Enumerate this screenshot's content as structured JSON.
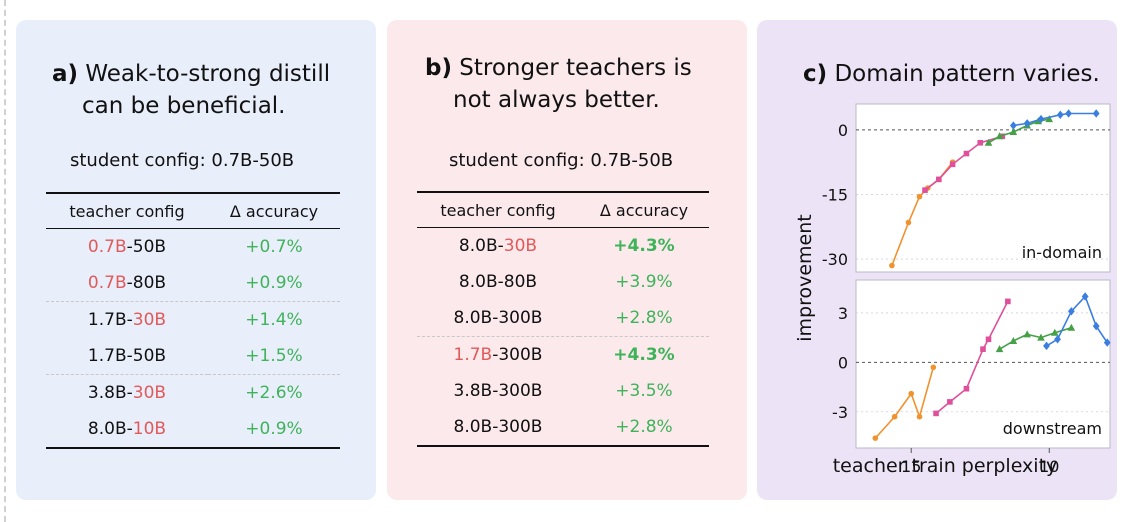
{
  "panel_a": {
    "label": "a)",
    "title_line1": "Weak-to-strong distill",
    "title_line2": "can be beneficial.",
    "student_config": "student config:  0.7B-50B",
    "col_teacher": "teacher config",
    "col_delta": "Δ accuracy",
    "rows": [
      {
        "p1": "0.7B",
        "p2": "-50B",
        "delta": "+0.7%"
      },
      {
        "p1": "0.7B",
        "p2": "-80B",
        "delta": "+0.9%"
      },
      {
        "p1": "1.7B-",
        "p2": "30B",
        "delta": "+1.4%"
      },
      {
        "p1": "1.7B-50B",
        "p2": "",
        "delta": "+1.5%"
      },
      {
        "p1": "3.8B-",
        "p2": "30B",
        "delta": "+2.6%"
      },
      {
        "p1": "8.0B-",
        "p2": "10B",
        "delta": "+0.9%"
      }
    ]
  },
  "panel_b": {
    "label": "b)",
    "title_line1": "Stronger teachers is",
    "title_line2": "not always better.",
    "student_config": "student config:  0.7B-50B",
    "col_teacher": "teacher config",
    "col_delta": "Δ accuracy",
    "rows": [
      {
        "p1": "8.0B-",
        "p2": "30B",
        "delta": "+4.3%"
      },
      {
        "p1": "8.0B-80B",
        "p2": "",
        "delta": "+3.9%"
      },
      {
        "p1": "8.0B-300B",
        "p2": "",
        "delta": "+2.8%"
      },
      {
        "p1": "1.7B",
        "p2": "-300B",
        "delta": "+4.3%"
      },
      {
        "p1": "3.8B-300B",
        "p2": "",
        "delta": "+3.5%"
      },
      {
        "p1": "8.0B-300B",
        "p2": "",
        "delta": "+2.8%"
      }
    ]
  },
  "panel_c": {
    "label": "c)",
    "title": "Domain pattern varies.",
    "ylabel": "improvement",
    "xlabel": "teacher train perplexity",
    "top_label": "in-domain",
    "bottom_label": "downstream"
  },
  "colors": {
    "orange": "#f0922e",
    "pink": "#e0509a",
    "green": "#45a047",
    "blue": "#3a7ee0",
    "red_text": "#e05a5a",
    "green_text": "#3fb35a"
  },
  "chart_data": [
    {
      "type": "line",
      "title": "in-domain",
      "ylabel": "improvement",
      "xlabel": "",
      "x_reversed": true,
      "xlim": [
        17,
        7.8
      ],
      "ylim": [
        -33,
        6
      ],
      "yticks": [
        0,
        -15,
        -30
      ],
      "xticks": [
        15,
        10
      ],
      "series": [
        {
          "color": "orange",
          "marker": "circle",
          "x": [
            15.7,
            15.1,
            14.7,
            14.4,
            14.0,
            13.5
          ],
          "y": [
            -31.5,
            -21.5,
            -15.5,
            -13.5,
            -11.5,
            -7.5
          ]
        },
        {
          "color": "pink",
          "marker": "square",
          "x": [
            14.5,
            14.0,
            13.5,
            13.0,
            12.5,
            11.7
          ],
          "y": [
            -14,
            -11.5,
            -8,
            -5.5,
            -3,
            -1.5
          ]
        },
        {
          "color": "green",
          "marker": "triangle",
          "x": [
            12.2,
            11.8,
            11.3,
            10.8,
            10.4,
            10.0
          ],
          "y": [
            -3,
            -1.5,
            -0.5,
            1,
            2,
            2.5
          ]
        },
        {
          "color": "blue",
          "marker": "diamond",
          "x": [
            11.3,
            10.8,
            10.3,
            9.6,
            9.3,
            8.3
          ],
          "y": [
            1,
            1.5,
            2.5,
            3.5,
            3.8,
            3.8
          ]
        }
      ]
    },
    {
      "type": "line",
      "title": "downstream",
      "ylabel": "improvement",
      "xlabel": "teacher train perplexity",
      "x_reversed": true,
      "xlim": [
        17,
        7.8
      ],
      "ylim": [
        -5.2,
        5
      ],
      "yticks": [
        3,
        0,
        -3
      ],
      "xticks": [
        15,
        10
      ],
      "series": [
        {
          "color": "orange",
          "marker": "circle",
          "x": [
            16.3,
            15.6,
            15.0,
            14.7,
            14.2
          ],
          "y": [
            -4.6,
            -3.3,
            -1.9,
            -3.3,
            -0.3
          ]
        },
        {
          "color": "pink",
          "marker": "square",
          "x": [
            14.1,
            13.6,
            13.0,
            12.4,
            12.2,
            11.5
          ],
          "y": [
            -3.1,
            -2.4,
            -1.6,
            0.8,
            1.4,
            3.7
          ]
        },
        {
          "color": "green",
          "marker": "triangle",
          "x": [
            11.8,
            11.3,
            10.8,
            10.3,
            9.8,
            9.2
          ],
          "y": [
            0.8,
            1.3,
            1.7,
            1.5,
            1.8,
            2.1
          ]
        },
        {
          "color": "blue",
          "marker": "diamond",
          "x": [
            10.1,
            9.7,
            9.2,
            8.7,
            8.3,
            7.9
          ],
          "y": [
            1.0,
            1.4,
            3.1,
            4.0,
            2.2,
            1.2
          ]
        }
      ]
    }
  ]
}
